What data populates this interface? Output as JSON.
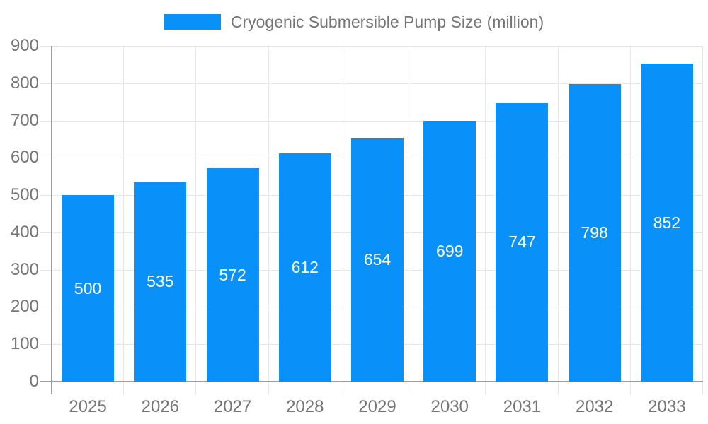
{
  "chart_data": {
    "type": "bar",
    "title": "Cryogenic Submersible Pump Size (million)",
    "legend": {
      "label": "Cryogenic Submersible Pump Size (million)",
      "position": "top-center"
    },
    "categories": [
      "2025",
      "2026",
      "2027",
      "2028",
      "2029",
      "2030",
      "2031",
      "2032",
      "2033"
    ],
    "series": [
      {
        "name": "Cryogenic Submersible Pump Size (million)",
        "values": [
          500,
          535,
          572,
          612,
          654,
          699,
          747,
          798,
          852
        ]
      }
    ],
    "data_labels": [
      "500",
      "535",
      "572",
      "612",
      "654",
      "699",
      "747",
      "798",
      "852"
    ],
    "xlabel": "",
    "ylabel": "",
    "ylim": [
      0,
      900
    ],
    "ytick_step": 100,
    "ytick_labels": [
      "0",
      "100",
      "200",
      "300",
      "400",
      "500",
      "600",
      "700",
      "800",
      "900"
    ],
    "grid": "on",
    "colors": {
      "bar": "#0991f9",
      "bar_value_label": "#ffffff",
      "axis_text": "#757575",
      "legend_text": "#757575",
      "gridline": "#e6e6e6",
      "axis_line": "#9e9e9e",
      "background": "#ffffff"
    }
  }
}
